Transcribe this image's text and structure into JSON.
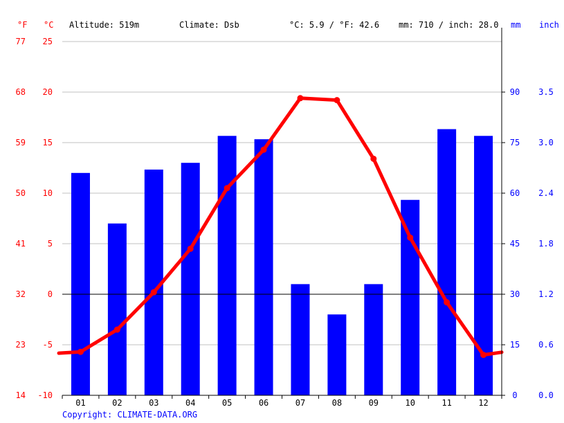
{
  "header": {
    "unit_f": "°F",
    "unit_c": "°C",
    "altitude": "Altitude: 519m",
    "climate": "Climate: Dsb",
    "temp_avg": "°C: 5.9 / °F: 42.6",
    "precip_total": "mm: 710 / inch: 28.0",
    "unit_mm": "mm",
    "unit_inch": "inch"
  },
  "footer": {
    "copyright": "Copyright: CLIMATE-DATA.ORG"
  },
  "colors": {
    "temperature": "#ff0000",
    "precipitation": "#0000ff",
    "grid": "#c0c0c0",
    "zero_line": "#000000"
  },
  "chart_data": {
    "type": "bar+line",
    "categories": [
      "01",
      "02",
      "03",
      "04",
      "05",
      "06",
      "07",
      "08",
      "09",
      "10",
      "11",
      "12"
    ],
    "precipitation_mm": [
      66,
      51,
      67,
      69,
      77,
      76,
      33,
      24,
      33,
      58,
      79,
      77
    ],
    "temperature_c": [
      -5.7,
      -3.5,
      0.2,
      4.5,
      10.5,
      14.3,
      19.4,
      19.2,
      13.4,
      5.6,
      -0.8,
      -6.0
    ],
    "temp_ylim": [
      -10,
      25
    ],
    "temp_c_ticks": [
      "-10",
      "-5",
      "0",
      "5",
      "10",
      "15",
      "20",
      "25"
    ],
    "temp_f_ticks": [
      "14",
      "23",
      "32",
      "41",
      "50",
      "59",
      "68",
      "77"
    ],
    "precip_ylim": [
      0,
      105
    ],
    "precip_mm_ticks": [
      "0",
      "15",
      "30",
      "45",
      "60",
      "75",
      "90"
    ],
    "precip_inch_ticks": [
      "0.0",
      "0.6",
      "1.2",
      "1.8",
      "2.4",
      "3.0",
      "3.5"
    ],
    "grid": true
  }
}
